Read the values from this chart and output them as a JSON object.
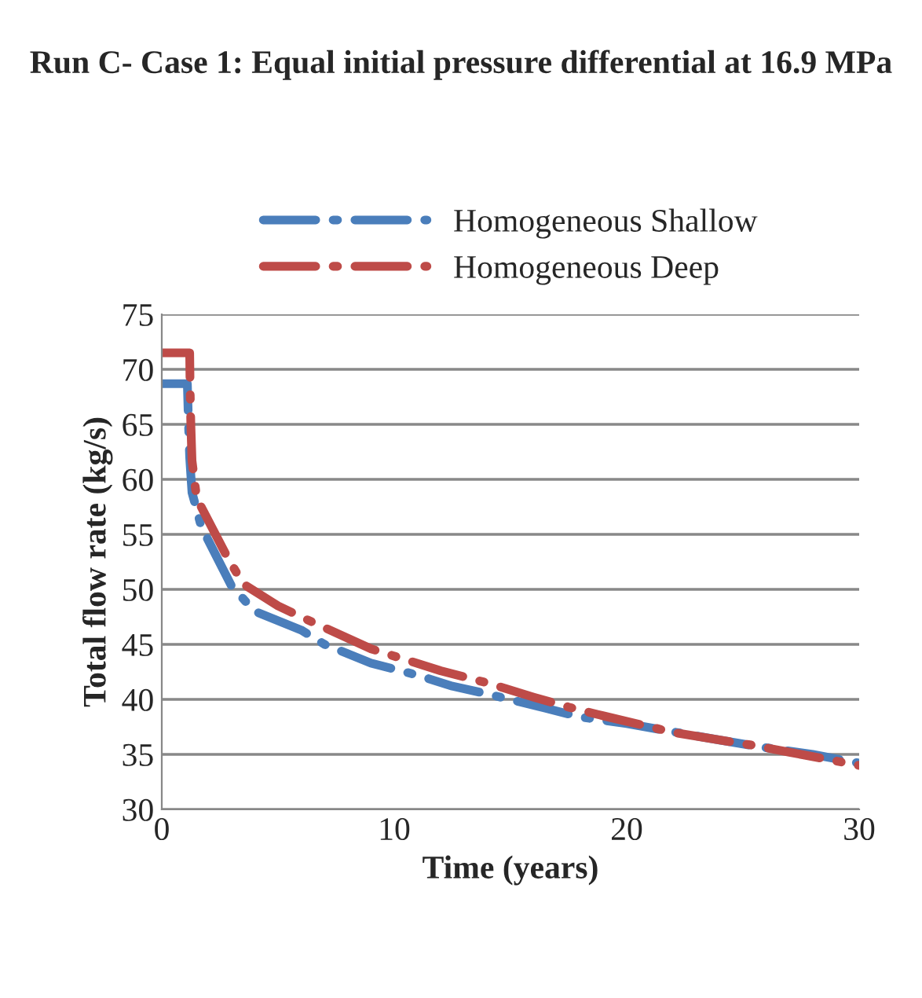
{
  "chart_data": {
    "type": "line",
    "title": "Run C- Case 1: Equal initial pressure differential at 16.9 MPa",
    "xlabel": "Time (years)",
    "ylabel": "Total flow rate (kg/s)",
    "xlim": [
      0,
      30
    ],
    "xticks": [
      0,
      10,
      20,
      30
    ],
    "ylim": [
      30,
      75
    ],
    "yticks": [
      30,
      35,
      40,
      45,
      50,
      55,
      60,
      65,
      70,
      75
    ],
    "grid": "y",
    "legend": "top",
    "line_style": "dashed",
    "marker": "none",
    "series": [
      {
        "name": "Homogeneous Shallow",
        "color": "#4a7ebb",
        "x": [
          0,
          1.1,
          1.15,
          1.2,
          1.3,
          1.7,
          3.0,
          4,
          6,
          7,
          9,
          11,
          12.5,
          14,
          16.5,
          18,
          20,
          24,
          26,
          28,
          30
        ],
        "values": [
          68.7,
          68.7,
          65,
          62,
          58.8,
          55.7,
          50.3,
          48,
          46.3,
          45,
          43.3,
          42.2,
          41.2,
          40.5,
          39.2,
          38.4,
          37.8,
          36.3,
          35.6,
          35,
          34.2
        ]
      },
      {
        "name": "Homogeneous Deep",
        "color": "#be4b48",
        "x": [
          0,
          1.2,
          1.22,
          1.25,
          1.3,
          1.5,
          2.8,
          3.5,
          5,
          6.5,
          9,
          10.5,
          12,
          14,
          16,
          17.5,
          19,
          22,
          25.5,
          27,
          30
        ],
        "values": [
          71.5,
          71.5,
          68,
          65,
          61.7,
          58.3,
          53,
          50.5,
          48.5,
          47,
          44.6,
          43.6,
          42.6,
          41.5,
          40.2,
          39.3,
          38.5,
          37,
          35.8,
          35.2,
          34
        ]
      }
    ]
  }
}
